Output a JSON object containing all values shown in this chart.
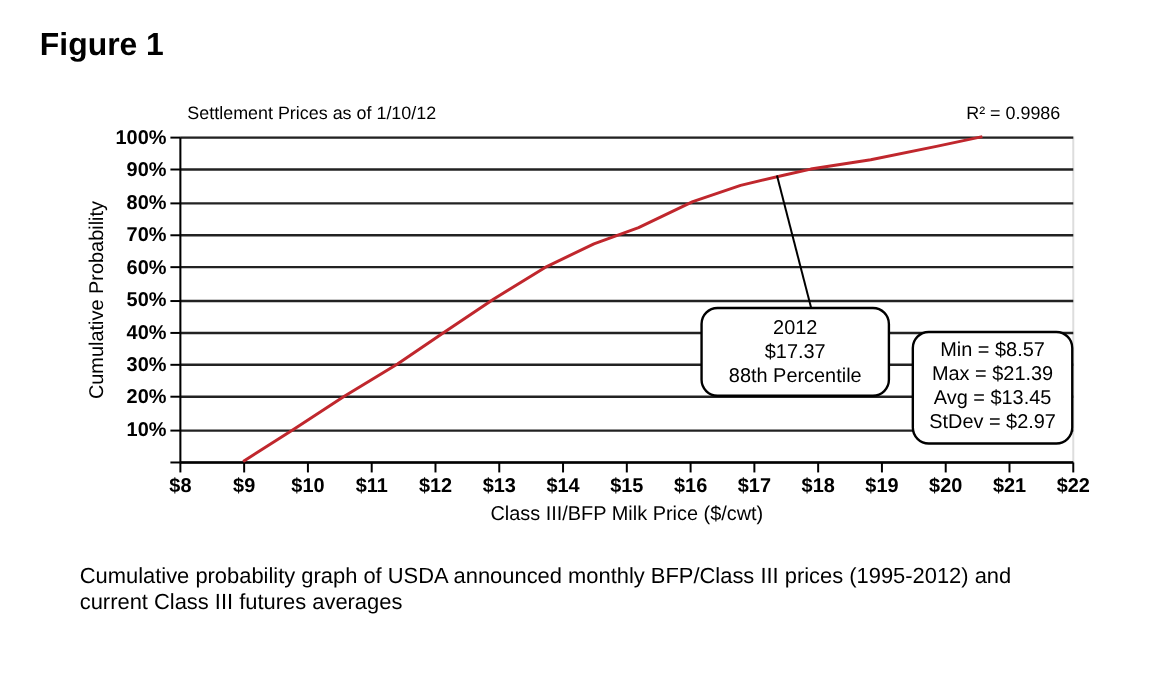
{
  "chart_data": {
    "type": "line",
    "title": "Figure 1",
    "xlabel": "Class III/BFP Milk Price ($/cwt)",
    "ylabel": "Cumulative Probability",
    "series": [
      {
        "color": "#c0272d",
        "x": [
          9.0,
          9.8,
          10.58,
          11.42,
          12.17,
          12.93,
          13.76,
          14.5,
          15.2,
          16.05,
          16.8,
          17.49,
          17.9,
          18.84,
          19.87,
          20.59
        ],
        "values": [
          0,
          10,
          20,
          30,
          40,
          50,
          60,
          67,
          72,
          80,
          85,
          88.2,
          90,
          92.9,
          97,
          100
        ]
      }
    ],
    "xlim": [
      8,
      22
    ],
    "ylim": [
      0,
      100
    ],
    "xticks": [
      {
        "value": 8,
        "label": "$8"
      },
      {
        "value": 9,
        "label": "$9"
      },
      {
        "value": 10,
        "label": "$10"
      },
      {
        "value": 11,
        "label": "$11"
      },
      {
        "value": 12,
        "label": "$12"
      },
      {
        "value": 13,
        "label": "$13"
      },
      {
        "value": 14,
        "label": "$14"
      },
      {
        "value": 15,
        "label": "$15"
      },
      {
        "value": 16,
        "label": "$16"
      },
      {
        "value": 17,
        "label": "$17"
      },
      {
        "value": 18,
        "label": "$18"
      },
      {
        "value": 19,
        "label": "$19"
      },
      {
        "value": 20,
        "label": "$20"
      },
      {
        "value": 21,
        "label": "$21"
      },
      {
        "value": 22,
        "label": "$22"
      }
    ],
    "yticks": [
      {
        "value": 0,
        "label": null
      },
      {
        "value": 10,
        "label": "10%"
      },
      {
        "value": 20,
        "label": "20%"
      },
      {
        "value": 30,
        "label": "30%"
      },
      {
        "value": 40,
        "label": "40%"
      },
      {
        "value": 50,
        "label": "50%"
      },
      {
        "value": 60,
        "label": "60%"
      },
      {
        "value": 70,
        "label": "70%"
      },
      {
        "value": 80,
        "label": "80%"
      },
      {
        "value": 90,
        "label": "90%"
      },
      {
        "value": 100,
        "label": "100%"
      }
    ],
    "grid": "y",
    "marker": "none",
    "line_style": "solid",
    "annotations": [
      "Settlement Prices as of 1/10/12",
      "R² = 0.9986",
      {
        "text": "2012\n$17.37\n88th Percentile",
        "x": 17.37,
        "y": 88
      },
      "Min = $8.57\nMax = $21.39\nAvg = $13.45\nStDev = $2.97",
      "Cumulative probability graph of USDA announced monthly BFP/Class III prices (1995-2012) and\ncurrent Class III futures averages"
    ]
  }
}
